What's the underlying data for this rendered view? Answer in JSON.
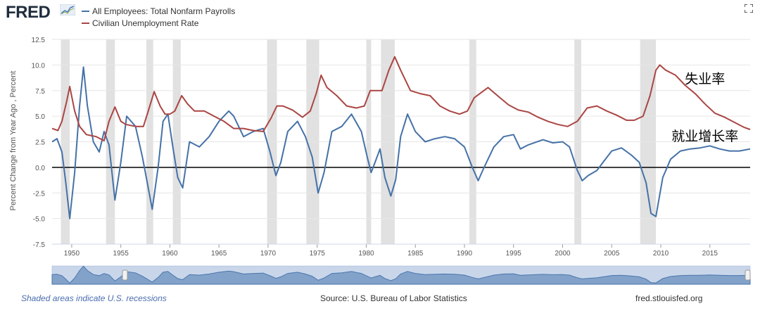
{
  "header": {
    "logo_text": "FRED",
    "fullscreen_icon": "expand-icon"
  },
  "chart_data": {
    "type": "line",
    "xlabel": "",
    "ylabel": "Percent Change from Year Ago , Percent",
    "xlim": [
      1948,
      2019.1
    ],
    "ylim": [
      -7.5,
      12.5
    ],
    "yticks": [
      "12.5",
      "10.0",
      "7.5",
      "5.0",
      "2.5",
      "0.0",
      "-2.5",
      "-5.0",
      "-7.5"
    ],
    "ytick_values": [
      12.5,
      10,
      7.5,
      5,
      2.5,
      0,
      -2.5,
      -5,
      -7.5
    ],
    "xticks": [
      "1950",
      "1955",
      "1960",
      "1965",
      "1970",
      "1975",
      "1980",
      "1985",
      "1990",
      "1995",
      "2000",
      "2005",
      "2010",
      "2015"
    ],
    "xtick_values": [
      1950,
      1955,
      1960,
      1965,
      1970,
      1975,
      1980,
      1985,
      1990,
      1995,
      2000,
      2005,
      2010,
      2015
    ],
    "grid": true,
    "legend_position": "top-left",
    "zero_line": true,
    "recessions": [
      [
        1948.9,
        1949.8
      ],
      [
        1953.5,
        1954.4
      ],
      [
        1957.6,
        1958.3
      ],
      [
        1960.3,
        1961.1
      ],
      [
        1969.9,
        1970.9
      ],
      [
        1973.9,
        1975.2
      ],
      [
        1980.0,
        1980.5
      ],
      [
        1981.5,
        1982.9
      ],
      [
        1990.5,
        1991.2
      ],
      [
        2001.2,
        2001.9
      ],
      [
        2007.9,
        2009.5
      ]
    ],
    "series": [
      {
        "name": "All Employees: Total Nonfarm Payrolls",
        "color": "#4572a7",
        "x": [
          1948,
          1948.5,
          1949,
          1949.4,
          1949.8,
          1950.3,
          1950.8,
          1951.2,
          1951.6,
          1952.2,
          1952.8,
          1953.3,
          1953.8,
          1954.4,
          1955,
          1955.6,
          1956.5,
          1957.2,
          1957.7,
          1958.2,
          1958.8,
          1959.3,
          1959.8,
          1960.3,
          1960.8,
          1961.3,
          1962,
          1963,
          1964,
          1965,
          1966,
          1966.5,
          1967.5,
          1968.5,
          1969.5,
          1970.2,
          1970.8,
          1971.3,
          1972,
          1973,
          1973.8,
          1974.5,
          1975.1,
          1975.7,
          1976.5,
          1977.5,
          1978.5,
          1979.5,
          1980.1,
          1980.5,
          1980.9,
          1981.4,
          1981.9,
          1982.5,
          1983,
          1983.5,
          1984.2,
          1985,
          1986,
          1987,
          1988,
          1989,
          1990,
          1990.8,
          1991.4,
          1992,
          1993,
          1994,
          1995,
          1995.7,
          1996.5,
          1998,
          1999,
          2000,
          2000.7,
          2001.5,
          2002,
          2002.6,
          2003.5,
          2004.2,
          2005,
          2006,
          2007,
          2007.8,
          2008.5,
          2009,
          2009.5,
          2010.2,
          2011,
          2012,
          2013,
          2014,
          2015,
          2016,
          2017,
          2018,
          2019.1
        ],
        "values": [
          2.5,
          2.8,
          1.5,
          -1.5,
          -5.0,
          -0.5,
          6.0,
          9.8,
          6.0,
          2.5,
          1.5,
          3.5,
          2.2,
          -3.2,
          0.5,
          5.0,
          4.0,
          1.0,
          -1.5,
          -4.1,
          0.0,
          4.5,
          5.2,
          2.0,
          -1.0,
          -2.0,
          2.5,
          2.0,
          3.0,
          4.5,
          5.5,
          5.0,
          3.0,
          3.5,
          3.8,
          1.5,
          -0.8,
          0.5,
          3.5,
          4.5,
          3.0,
          1.0,
          -2.5,
          -0.5,
          3.5,
          4.0,
          5.2,
          3.5,
          1.0,
          -0.5,
          0.5,
          1.8,
          -1.0,
          -2.8,
          -1.2,
          3.0,
          5.2,
          3.5,
          2.5,
          2.8,
          3.0,
          2.8,
          2.0,
          0.0,
          -1.3,
          0.0,
          2.0,
          3.0,
          3.2,
          1.8,
          2.2,
          2.7,
          2.4,
          2.5,
          2.0,
          -0.3,
          -1.3,
          -0.8,
          -0.3,
          0.6,
          1.6,
          1.9,
          1.2,
          0.5,
          -1.5,
          -4.5,
          -4.8,
          -1.0,
          0.8,
          1.6,
          1.8,
          1.9,
          2.1,
          1.8,
          1.6,
          1.6,
          1.8
        ]
      },
      {
        "name": "Civilian Unemployment Rate",
        "color": "#aa4643",
        "x": [
          1948,
          1948.6,
          1949,
          1949.5,
          1949.8,
          1950.3,
          1950.8,
          1951.5,
          1952.5,
          1953.3,
          1953.8,
          1954.4,
          1955,
          1955.5,
          1956.5,
          1957.3,
          1957.8,
          1958.4,
          1959,
          1959.5,
          1960,
          1960.5,
          1961.2,
          1961.8,
          1962.5,
          1963.5,
          1964.5,
          1965.5,
          1966.5,
          1967.5,
          1968.5,
          1969.5,
          1970.3,
          1970.9,
          1971.5,
          1972.5,
          1973.5,
          1974.3,
          1974.9,
          1975.4,
          1976,
          1977,
          1978,
          1979,
          1979.8,
          1980.4,
          1981,
          1981.6,
          1982.3,
          1982.9,
          1983.5,
          1984.5,
          1985.5,
          1986.5,
          1987.5,
          1988.5,
          1989.5,
          1990.3,
          1991,
          1992.4,
          1993.5,
          1994.5,
          1995.5,
          1996.5,
          1997.5,
          1998.5,
          1999.5,
          2000.5,
          2001.5,
          2002.5,
          2003.5,
          2004.5,
          2005.5,
          2006.5,
          2007.3,
          2008.2,
          2008.9,
          2009.5,
          2009.9,
          2010.5,
          2011.5,
          2012.5,
          2013.5,
          2014.5,
          2015.5,
          2016.5,
          2017.5,
          2018.5,
          2019.1
        ],
        "values": [
          3.8,
          3.6,
          4.5,
          6.5,
          7.9,
          5.5,
          4.0,
          3.2,
          3.0,
          2.6,
          4.5,
          5.9,
          4.5,
          4.2,
          4.0,
          4.0,
          5.5,
          7.4,
          6.0,
          5.2,
          5.2,
          5.5,
          7.0,
          6.2,
          5.5,
          5.5,
          5.0,
          4.5,
          3.8,
          3.8,
          3.6,
          3.5,
          4.8,
          6.0,
          6.0,
          5.6,
          4.9,
          5.5,
          7.2,
          9.0,
          7.8,
          7.0,
          6.0,
          5.8,
          6.0,
          7.5,
          7.5,
          7.5,
          9.5,
          10.8,
          9.5,
          7.5,
          7.2,
          7.0,
          6.0,
          5.5,
          5.2,
          5.5,
          6.8,
          7.8,
          6.9,
          6.1,
          5.6,
          5.4,
          4.9,
          4.5,
          4.2,
          4.0,
          4.5,
          5.8,
          6.0,
          5.5,
          5.1,
          4.6,
          4.6,
          5.0,
          7.0,
          9.5,
          10.0,
          9.5,
          9.0,
          8.0,
          7.2,
          6.2,
          5.3,
          4.9,
          4.4,
          3.9,
          3.7
        ]
      }
    ],
    "annotations": [
      {
        "text": "失业率",
        "x": 2014.5,
        "y": 8.7
      },
      {
        "text": "就业增长率",
        "x": 2014.5,
        "y": 3.1
      }
    ]
  },
  "footer": {
    "recession_note": "Shaded areas indicate U.S. recessions",
    "source": "Source: U.S. Bureau of Labor Statistics",
    "url": "fred.stlouisfed.org"
  }
}
